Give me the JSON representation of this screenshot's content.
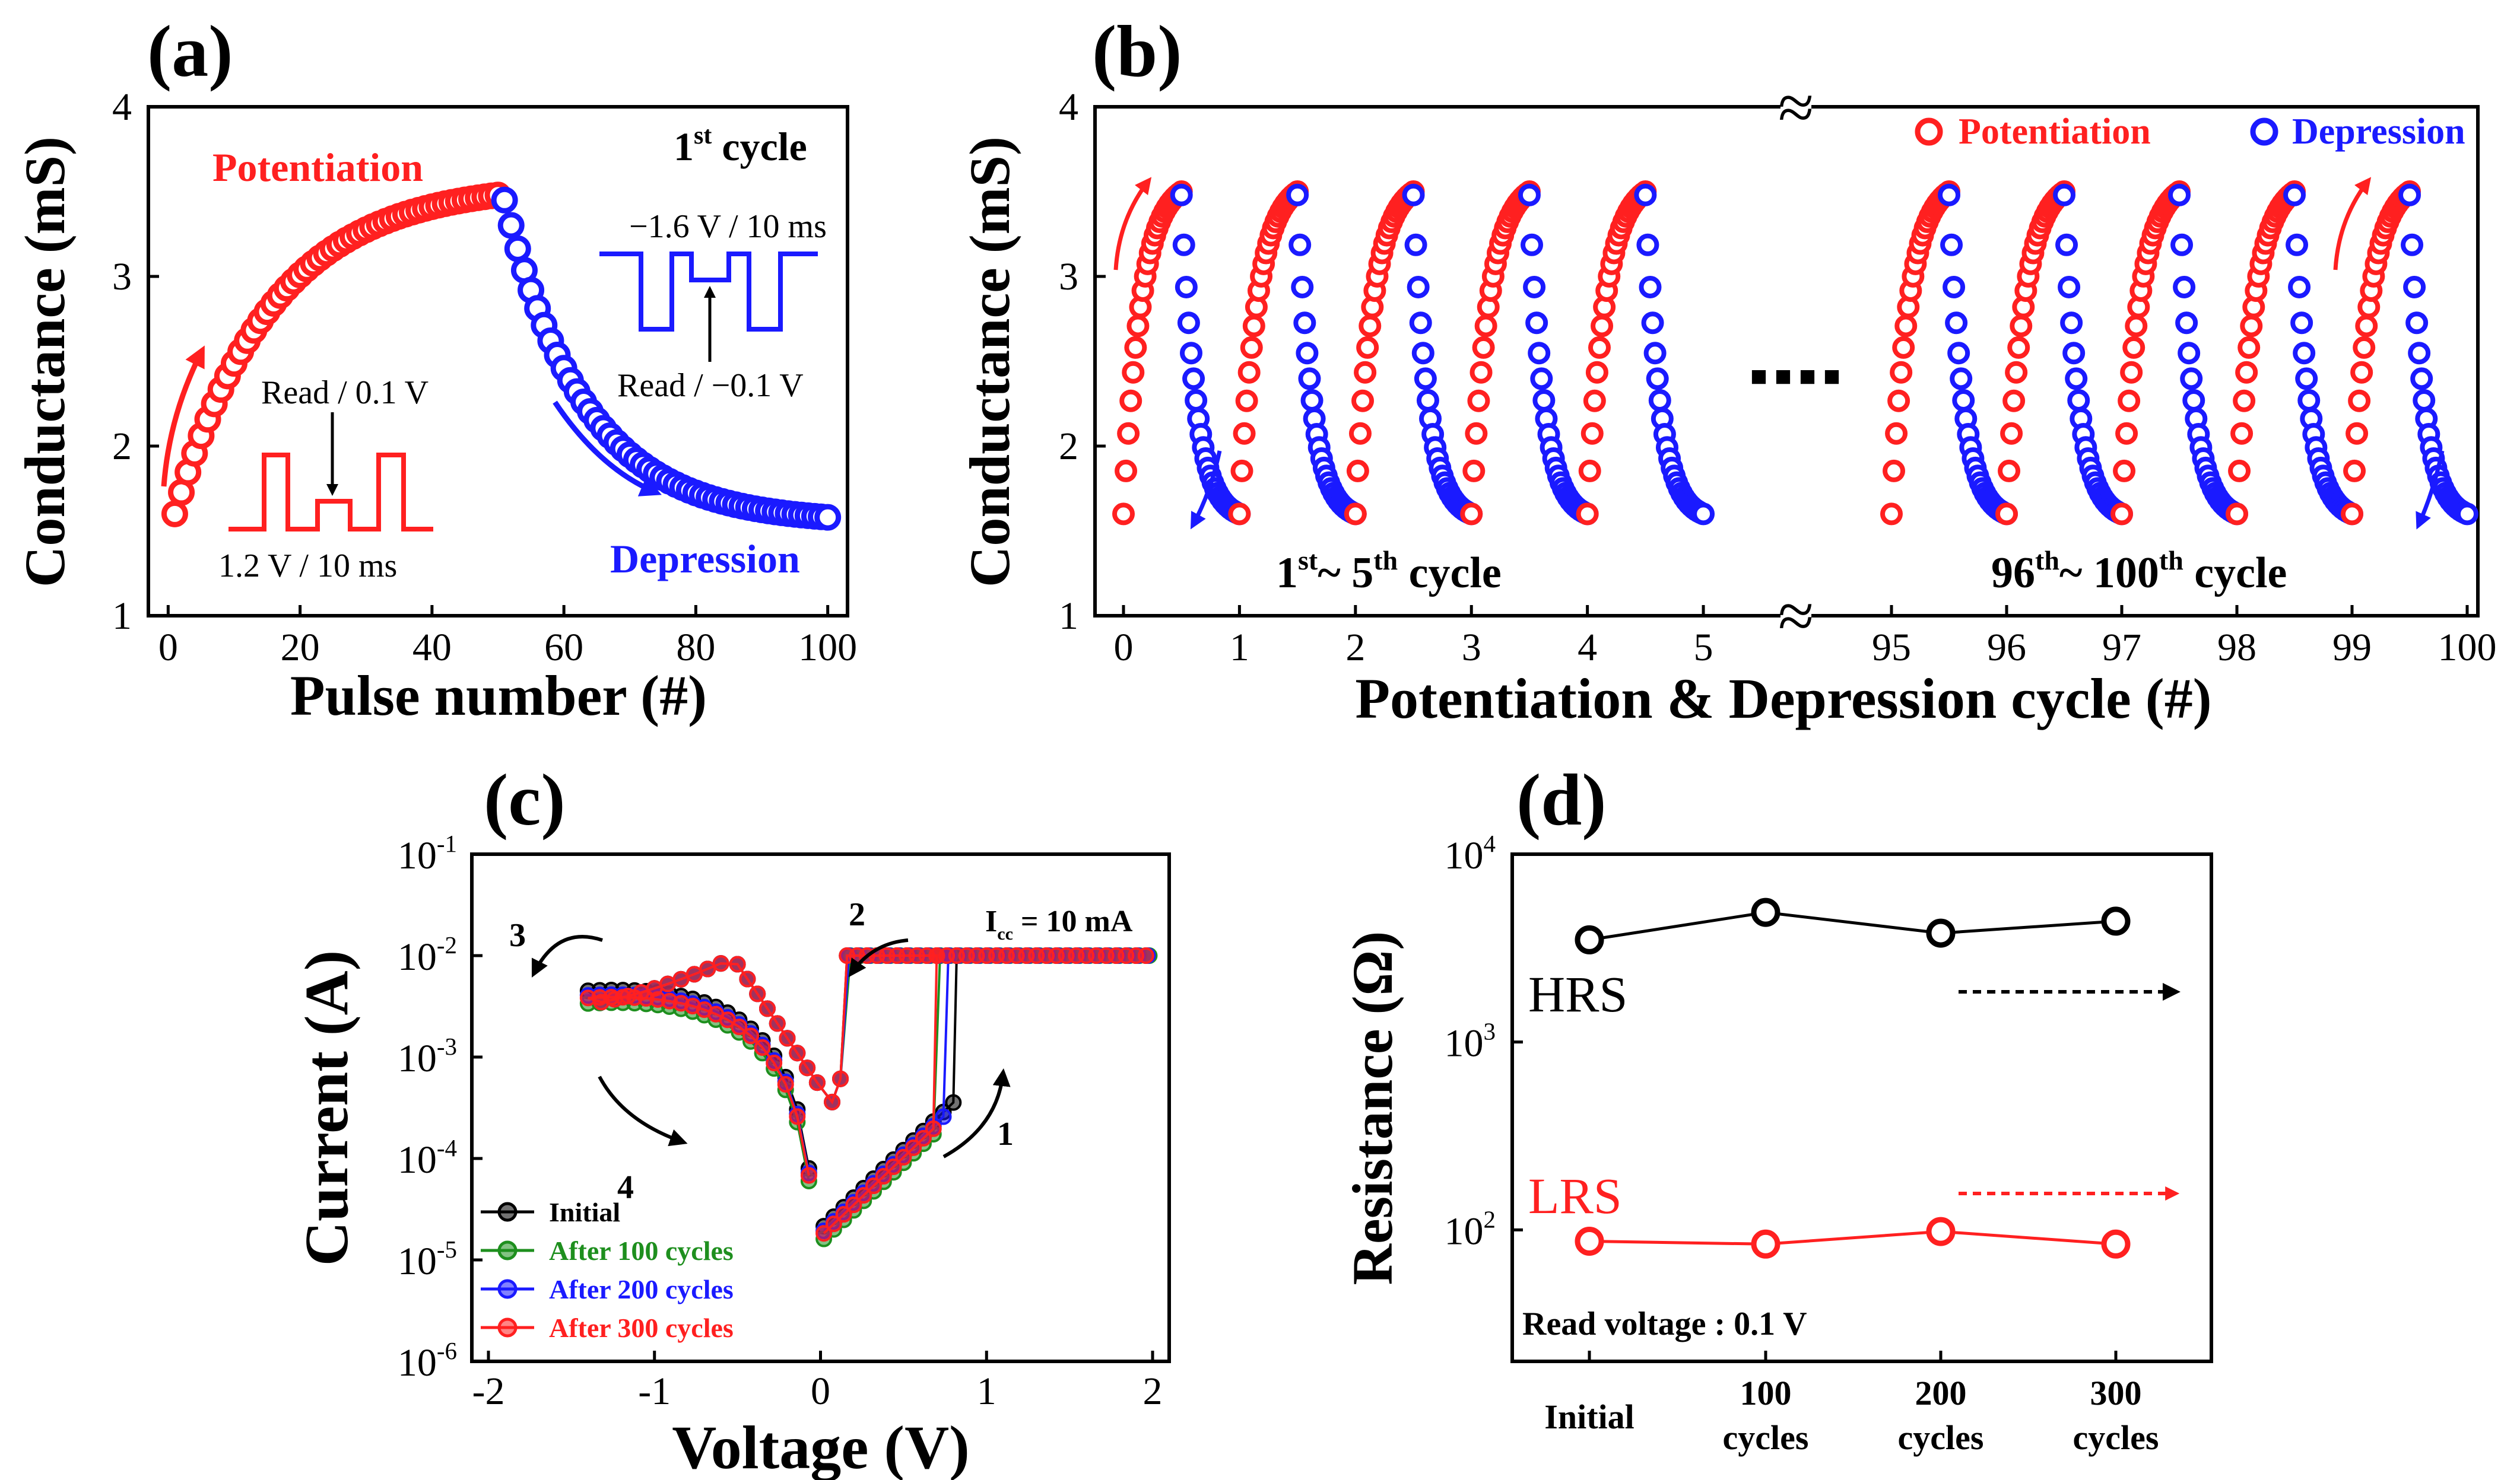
{
  "figure": {
    "panel_labels": [
      "(a)",
      "(b)",
      "(c)",
      "(d)"
    ],
    "colors": {
      "red": "#ff2020",
      "blue": "#1a1aff",
      "green": "#1e8f1e",
      "black": "#000000"
    }
  },
  "chart_data": [
    {
      "panel": "(a)",
      "type": "scatter",
      "title": "",
      "xlabel": "Pulse number (#)",
      "ylabel": "Conductance (mS)",
      "xlim": [
        -3,
        103
      ],
      "ylim": [
        1,
        4
      ],
      "xticks": [
        0,
        20,
        40,
        60,
        80,
        100
      ],
      "yticks": [
        1,
        2,
        3,
        4
      ],
      "series": [
        {
          "name": "Potentiation",
          "color": "#ff2020",
          "x_start": 1,
          "x_end": 50,
          "y_start": 1.6,
          "y_end": 3.48,
          "shape": "saturating-up"
        },
        {
          "name": "Depression",
          "color": "#1a1aff",
          "x_start": 51,
          "x_end": 100,
          "y_start": 3.45,
          "y_end": 1.58,
          "shape": "decaying-down"
        }
      ],
      "annotations": {
        "potentiation": "Potentiation",
        "depression": "Depression",
        "cycle_main": "1",
        "cycle_sup": "st",
        "cycle_tail": " cycle",
        "dep_pulse": "−1.6 V / 10 ms",
        "dep_read": "Read / −0.1 V",
        "pot_read": "Read / 0.1 V",
        "pot_pulse": "1.2 V / 10 ms"
      }
    },
    {
      "panel": "(b)",
      "type": "scatter",
      "xlabel": "Potentiation & Depression cycle (#)",
      "ylabel": "Conductance (mS)",
      "ylim": [
        1,
        4
      ],
      "yticks": [
        1,
        2,
        3,
        4
      ],
      "xticks_left": [
        0,
        1,
        2,
        3,
        4,
        5
      ],
      "xticks_right": [
        95,
        96,
        97,
        98,
        99,
        100
      ],
      "cycles_shown": [
        1,
        2,
        3,
        4,
        5,
        96,
        97,
        98,
        99,
        100
      ],
      "legend": [
        "Potentiation",
        "Depression"
      ],
      "potentiation": {
        "color": "#ff2020",
        "y_start": 1.6,
        "y_end": 3.5
      },
      "depression": {
        "color": "#1a1aff",
        "y_start": 3.48,
        "y_end": 1.6
      },
      "axis_break": "≈",
      "ellipsis": "■ ■ ■ ■",
      "range_left": {
        "a": "1",
        "a_sup": "st",
        "mid": "~ 5",
        "b_sup": "th",
        "tail": " cycle"
      },
      "range_right": {
        "a": "96",
        "a_sup": "th",
        "mid": "~ 100",
        "b_sup": "th",
        "tail": " cycle"
      }
    },
    {
      "panel": "(c)",
      "type": "line",
      "xlabel": "Voltage (V)",
      "ylabel": "Current (A)",
      "xlim": [
        -2.1,
        2.1
      ],
      "ylim_log10": [
        -6,
        -1
      ],
      "xticks": [
        -2,
        -1,
        0,
        1,
        2
      ],
      "ytick_labels": [
        {
          "base": "10",
          "exp": "-1"
        },
        {
          "base": "10",
          "exp": "-2"
        },
        {
          "base": "10",
          "exp": "-3"
        },
        {
          "base": "10",
          "exp": "-4"
        },
        {
          "base": "10",
          "exp": "-5"
        },
        {
          "base": "10",
          "exp": "-6"
        }
      ],
      "series": [
        {
          "name": "Initial",
          "color": "#000000",
          "set_voltage": 0.82,
          "hrs_scale": 1.0
        },
        {
          "name": "After 100 cycles",
          "color": "#1e8f1e",
          "set_voltage": 0.72,
          "hrs_scale": 0.75
        },
        {
          "name": "After 200 cycles",
          "color": "#1a1aff",
          "set_voltage": 0.77,
          "hrs_scale": 0.9
        },
        {
          "name": "After 300 cycles",
          "color": "#ff2020",
          "set_voltage": 0.7,
          "hrs_scale": 0.85
        }
      ],
      "compliance_current_A": 0.01,
      "annotations": {
        "icc_main": "I",
        "icc_sub": "cc",
        "icc_tail": " = 10 mA",
        "sweep_steps": [
          "1",
          "2",
          "3",
          "4"
        ]
      }
    },
    {
      "panel": "(d)",
      "type": "line",
      "xlabel": "",
      "ylabel": "Resistance (Ω)",
      "ylim_log10": [
        1.3,
        4
      ],
      "ytick_labels": [
        {
          "base": "10",
          "exp": "4"
        },
        {
          "base": "10",
          "exp": "3"
        },
        {
          "base": "10",
          "exp": "2"
        }
      ],
      "categories": [
        [
          "Initial"
        ],
        [
          "100",
          "cycles"
        ],
        [
          "200",
          "cycles"
        ],
        [
          "300",
          "cycles"
        ]
      ],
      "series": [
        {
          "name": "HRS",
          "color": "#000000",
          "values": [
            3500,
            4900,
            3800,
            4400
          ]
        },
        {
          "name": "LRS",
          "color": "#ff2020",
          "values": [
            87,
            84,
            98,
            84
          ]
        }
      ],
      "annotations": {
        "read_voltage": "Read voltage : 0.1 V"
      }
    }
  ]
}
